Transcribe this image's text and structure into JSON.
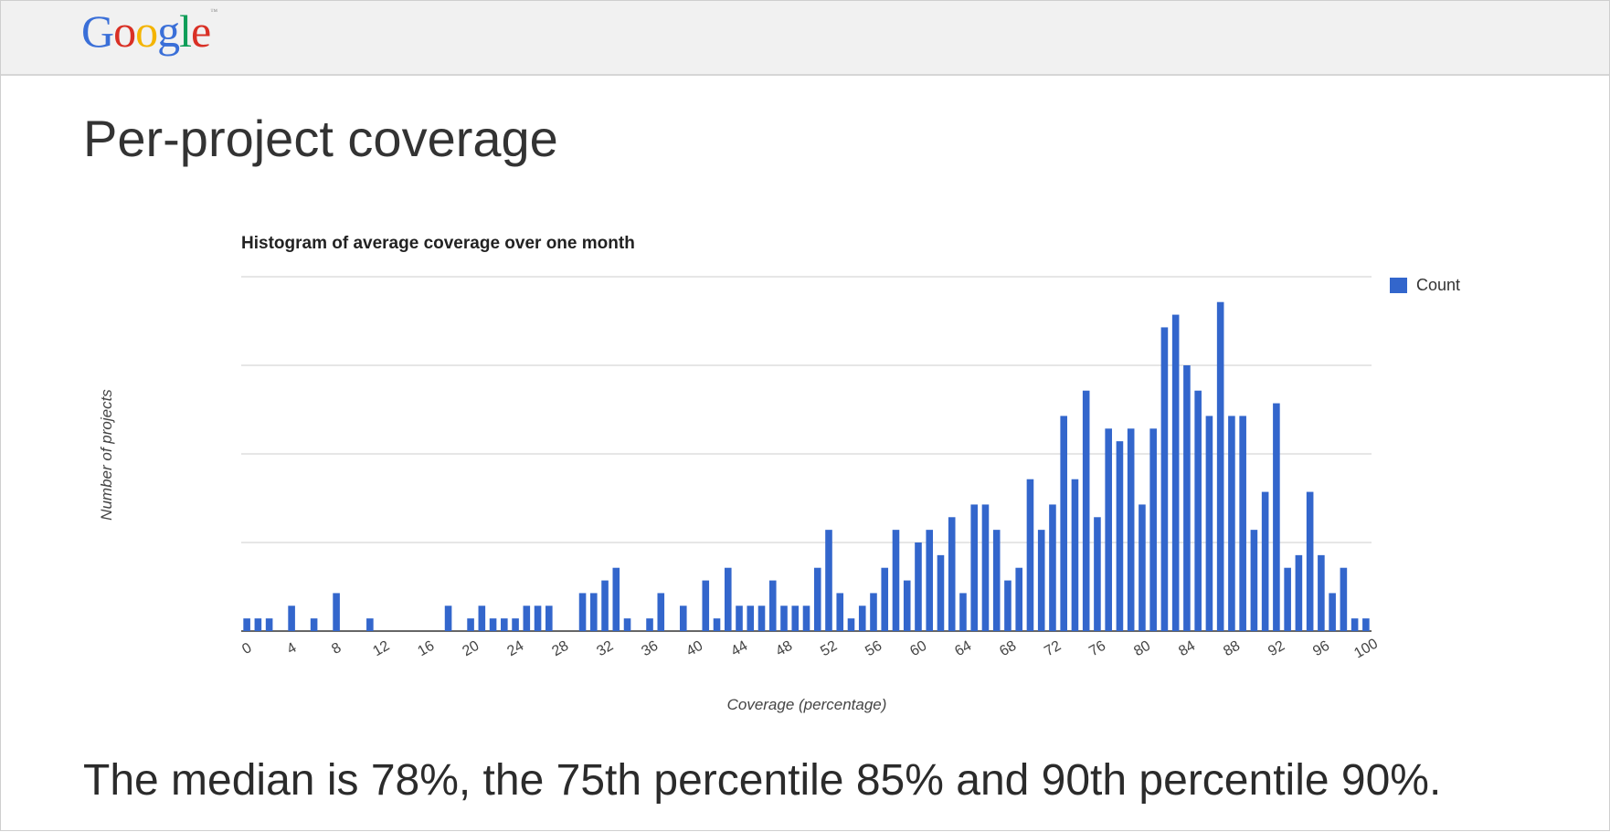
{
  "header": {
    "logo_text": "Google",
    "logo_trademark": "™"
  },
  "slide": {
    "title": "Per-project coverage",
    "footer": "The median is 78%, the 75th percentile 85% and 90th percentile 90%."
  },
  "colors": {
    "bar": "#3366cc",
    "grid": "#cccccc",
    "header_bg": "#f1f1f1"
  },
  "chart_data": {
    "type": "bar",
    "title": "Histogram of average coverage over one month",
    "xlabel": "Coverage (percentage)",
    "ylabel": "Number of projects",
    "legend_position": "top-right",
    "grid": true,
    "ylim": [
      0,
      28
    ],
    "gridline_values": [
      0,
      7,
      14,
      21,
      28
    ],
    "y_tick_labels_shown": false,
    "x_tick_labels": [
      "0",
      "4",
      "8",
      "12",
      "16",
      "20",
      "24",
      "28",
      "32",
      "36",
      "40",
      "44",
      "48",
      "52",
      "56",
      "60",
      "64",
      "68",
      "72",
      "76",
      "80",
      "84",
      "88",
      "92",
      "96",
      "100"
    ],
    "categories": [
      0,
      1,
      2,
      3,
      4,
      5,
      6,
      7,
      8,
      9,
      10,
      11,
      12,
      13,
      14,
      15,
      16,
      17,
      18,
      19,
      20,
      21,
      22,
      23,
      24,
      25,
      26,
      27,
      28,
      29,
      30,
      31,
      32,
      33,
      34,
      35,
      36,
      37,
      38,
      39,
      40,
      41,
      42,
      43,
      44,
      45,
      46,
      47,
      48,
      49,
      50,
      51,
      52,
      53,
      54,
      55,
      56,
      57,
      58,
      59,
      60,
      61,
      62,
      63,
      64,
      65,
      66,
      67,
      68,
      69,
      70,
      71,
      72,
      73,
      74,
      75,
      76,
      77,
      78,
      79,
      80,
      81,
      82,
      83,
      84,
      85,
      86,
      87,
      88,
      89,
      90,
      91,
      92,
      93,
      94,
      95,
      96,
      97,
      98,
      99,
      100
    ],
    "series": [
      {
        "name": "Count",
        "values": [
          1,
          1,
          1,
          0,
          2,
          0,
          1,
          0,
          3,
          0,
          0,
          1,
          0,
          0,
          0,
          0,
          0,
          0,
          2,
          0,
          1,
          2,
          1,
          1,
          1,
          2,
          2,
          2,
          0,
          0,
          3,
          3,
          4,
          5,
          1,
          0,
          1,
          3,
          0,
          2,
          0,
          4,
          1,
          5,
          2,
          2,
          2,
          4,
          2,
          2,
          2,
          5,
          8,
          3,
          1,
          2,
          3,
          5,
          8,
          4,
          7,
          8,
          6,
          9,
          3,
          10,
          10,
          8,
          4,
          5,
          12,
          8,
          10,
          17,
          12,
          19,
          9,
          16,
          15,
          16,
          10,
          16,
          24,
          25,
          21,
          19,
          17,
          26,
          17,
          17,
          8,
          11,
          18,
          5,
          6,
          11,
          6,
          3,
          5,
          1,
          1
        ]
      }
    ]
  }
}
